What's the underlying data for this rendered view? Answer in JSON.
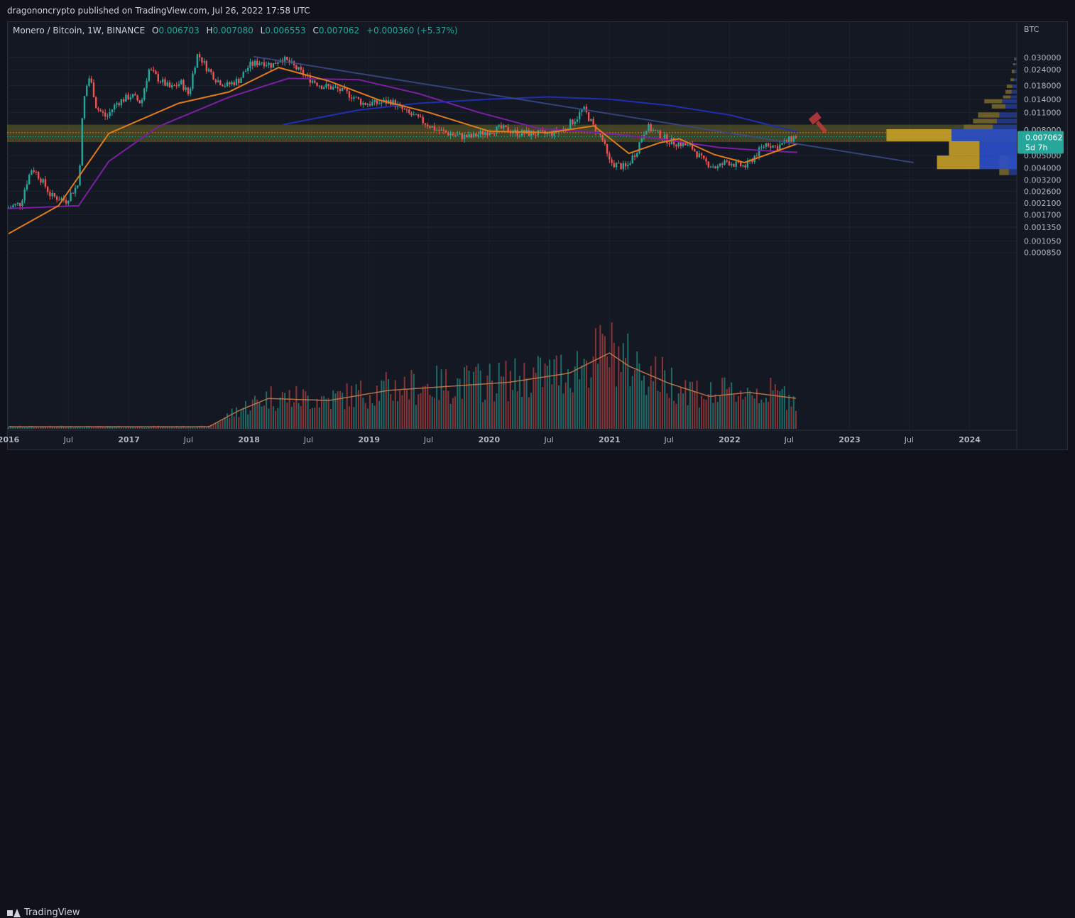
{
  "header": {
    "publisher_text": "dragononcrypto published on TradingView.com, Jul 26, 2022 17:58 UTC"
  },
  "legend": {
    "symbol": "Monero / Bitcoin, 1W, BINANCE",
    "o_label": "O",
    "o_value": "0.006703",
    "h_label": "H",
    "h_value": "0.007080",
    "l_label": "L",
    "l_value": "0.006553",
    "c_label": "C",
    "c_value": "0.007062",
    "change": "+0.000360 (+5.37%)"
  },
  "footer": {
    "brand": "TradingView"
  },
  "colors": {
    "background": "#141823",
    "up": "#26a69a",
    "down": "#ef5350",
    "ma_orange": "#e07b1a",
    "ma_purple": "#7b1fa2",
    "ma_blue": "#1e2fb0",
    "trendline": "#3a4a8a",
    "zone": "#8f8a2a",
    "price_badge": "#26a69a"
  },
  "chart_data": {
    "type": "candlestick",
    "pair": "XMR/BTC",
    "interval": "1W",
    "exchange": "BINANCE",
    "scale": "log",
    "y_unit_label": "BTC",
    "y_ticks": [
      "0.030000",
      "0.024000",
      "0.018000",
      "0.014000",
      "0.011000",
      "0.008000",
      "0.005000",
      "0.004000",
      "0.003200",
      "0.002600",
      "0.002100",
      "0.001700",
      "0.001350",
      "0.001050",
      "0.000850"
    ],
    "y_tick_values": [
      0.03,
      0.024,
      0.018,
      0.014,
      0.011,
      0.008,
      0.005,
      0.004,
      0.0032,
      0.0026,
      0.0021,
      0.0017,
      0.00135,
      0.00105,
      0.00085
    ],
    "x_ticks": [
      "2016",
      "Jul",
      "2017",
      "Jul",
      "2018",
      "Jul",
      "2019",
      "Jul",
      "2020",
      "Jul",
      "2021",
      "Jul",
      "2022",
      "Jul",
      "2023",
      "Jul",
      "2024"
    ],
    "x_tick_dates": [
      "2016-01-01",
      "2016-07-01",
      "2017-01-01",
      "2017-07-01",
      "2018-01-01",
      "2018-07-01",
      "2019-01-01",
      "2019-07-01",
      "2020-01-01",
      "2020-07-01",
      "2021-01-01",
      "2021-07-01",
      "2022-01-01",
      "2022-07-01",
      "2023-01-01",
      "2023-07-01",
      "2024-01-01"
    ],
    "x_bold_ticks": [
      "2016",
      "2017",
      "2018",
      "2019",
      "2020",
      "2021",
      "2022",
      "2023",
      "2024"
    ],
    "last_price": "0.007062",
    "countdown": "5d 7h",
    "price_path": [
      {
        "date": "2016-01-01",
        "price": 0.0019
      },
      {
        "date": "2016-02-15",
        "price": 0.0021
      },
      {
        "date": "2016-03-20",
        "price": 0.004
      },
      {
        "date": "2016-05-15",
        "price": 0.0024
      },
      {
        "date": "2016-07-01",
        "price": 0.0022
      },
      {
        "date": "2016-08-10",
        "price": 0.003
      },
      {
        "date": "2016-08-28",
        "price": 0.016
      },
      {
        "date": "2016-09-10",
        "price": 0.021
      },
      {
        "date": "2016-10-01",
        "price": 0.012
      },
      {
        "date": "2016-11-01",
        "price": 0.01
      },
      {
        "date": "2016-12-01",
        "price": 0.013
      },
      {
        "date": "2017-01-15",
        "price": 0.015
      },
      {
        "date": "2017-02-15",
        "price": 0.013
      },
      {
        "date": "2017-03-10",
        "price": 0.024
      },
      {
        "date": "2017-04-10",
        "price": 0.02
      },
      {
        "date": "2017-05-15",
        "price": 0.017
      },
      {
        "date": "2017-06-15",
        "price": 0.019
      },
      {
        "date": "2017-07-10",
        "price": 0.015
      },
      {
        "date": "2017-08-05",
        "price": 0.032
      },
      {
        "date": "2017-09-01",
        "price": 0.025
      },
      {
        "date": "2017-10-01",
        "price": 0.02
      },
      {
        "date": "2017-11-01",
        "price": 0.018
      },
      {
        "date": "2017-12-10",
        "price": 0.02
      },
      {
        "date": "2018-01-10",
        "price": 0.026
      },
      {
        "date": "2018-02-15",
        "price": 0.028
      },
      {
        "date": "2018-03-20",
        "price": 0.026
      },
      {
        "date": "2018-04-15",
        "price": 0.03
      },
      {
        "date": "2018-05-20",
        "price": 0.026
      },
      {
        "date": "2018-07-01",
        "price": 0.021
      },
      {
        "date": "2018-08-15",
        "price": 0.018
      },
      {
        "date": "2018-10-01",
        "price": 0.017
      },
      {
        "date": "2018-11-15",
        "price": 0.015
      },
      {
        "date": "2018-12-20",
        "price": 0.013
      },
      {
        "date": "2019-02-01",
        "price": 0.013
      },
      {
        "date": "2019-03-15",
        "price": 0.0135
      },
      {
        "date": "2019-05-01",
        "price": 0.011
      },
      {
        "date": "2019-06-15",
        "price": 0.0095
      },
      {
        "date": "2019-08-01",
        "price": 0.008
      },
      {
        "date": "2019-10-01",
        "price": 0.0072
      },
      {
        "date": "2019-11-15",
        "price": 0.007
      },
      {
        "date": "2020-01-01",
        "price": 0.0078
      },
      {
        "date": "2020-02-15",
        "price": 0.0082
      },
      {
        "date": "2020-04-01",
        "price": 0.0076
      },
      {
        "date": "2020-05-15",
        "price": 0.0075
      },
      {
        "date": "2020-07-01",
        "price": 0.0074
      },
      {
        "date": "2020-08-20",
        "price": 0.008
      },
      {
        "date": "2020-10-01",
        "price": 0.01
      },
      {
        "date": "2020-10-20",
        "price": 0.0118
      },
      {
        "date": "2020-11-20",
        "price": 0.0085
      },
      {
        "date": "2020-12-15",
        "price": 0.007
      },
      {
        "date": "2021-01-05",
        "price": 0.0045
      },
      {
        "date": "2021-02-01",
        "price": 0.0042
      },
      {
        "date": "2021-03-01",
        "price": 0.004
      },
      {
        "date": "2021-04-01",
        "price": 0.0055
      },
      {
        "date": "2021-05-01",
        "price": 0.0085
      },
      {
        "date": "2021-06-01",
        "price": 0.0075
      },
      {
        "date": "2021-07-10",
        "price": 0.0065
      },
      {
        "date": "2021-08-15",
        "price": 0.0062
      },
      {
        "date": "2021-09-15",
        "price": 0.0058
      },
      {
        "date": "2021-10-20",
        "price": 0.0045
      },
      {
        "date": "2021-12-01",
        "price": 0.004
      },
      {
        "date": "2022-01-01",
        "price": 0.0045
      },
      {
        "date": "2022-02-01",
        "price": 0.0042
      },
      {
        "date": "2022-03-01",
        "price": 0.0041
      },
      {
        "date": "2022-04-01",
        "price": 0.0052
      },
      {
        "date": "2022-05-01",
        "price": 0.0063
      },
      {
        "date": "2022-06-01",
        "price": 0.0058
      },
      {
        "date": "2022-07-26",
        "price": 0.007062
      }
    ],
    "volume_path": [
      {
        "date": "2016-01-01",
        "v": 0.02
      },
      {
        "date": "2017-09-01",
        "v": 0.02
      },
      {
        "date": "2017-12-01",
        "v": 0.18
      },
      {
        "date": "2018-03-01",
        "v": 0.3
      },
      {
        "date": "2018-09-01",
        "v": 0.28
      },
      {
        "date": "2019-03-01",
        "v": 0.38
      },
      {
        "date": "2019-09-01",
        "v": 0.42
      },
      {
        "date": "2020-03-01",
        "v": 0.46
      },
      {
        "date": "2020-09-01",
        "v": 0.55
      },
      {
        "date": "2021-01-01",
        "v": 0.75
      },
      {
        "date": "2021-03-01",
        "v": 0.62
      },
      {
        "date": "2021-07-01",
        "v": 0.45
      },
      {
        "date": "2021-11-01",
        "v": 0.32
      },
      {
        "date": "2022-03-01",
        "v": 0.36
      },
      {
        "date": "2022-07-26",
        "v": 0.3
      }
    ],
    "ma_orange": [
      {
        "date": "2016-01-01",
        "price": 0.0012
      },
      {
        "date": "2016-06-01",
        "price": 0.002
      },
      {
        "date": "2016-11-01",
        "price": 0.0075
      },
      {
        "date": "2017-06-01",
        "price": 0.013
      },
      {
        "date": "2017-11-01",
        "price": 0.016
      },
      {
        "date": "2018-04-01",
        "price": 0.025
      },
      {
        "date": "2018-09-01",
        "price": 0.0195
      },
      {
        "date": "2019-02-01",
        "price": 0.0138
      },
      {
        "date": "2019-07-01",
        "price": 0.011
      },
      {
        "date": "2020-01-01",
        "price": 0.0078
      },
      {
        "date": "2020-07-01",
        "price": 0.0076
      },
      {
        "date": "2020-11-15",
        "price": 0.0086
      },
      {
        "date": "2021-03-01",
        "price": 0.0052
      },
      {
        "date": "2021-06-01",
        "price": 0.0063
      },
      {
        "date": "2021-08-01",
        "price": 0.0068
      },
      {
        "date": "2021-11-15",
        "price": 0.0051
      },
      {
        "date": "2022-02-15",
        "price": 0.0044
      },
      {
        "date": "2022-07-26",
        "price": 0.0062
      }
    ],
    "ma_purple": [
      {
        "date": "2016-01-01",
        "price": 0.0019
      },
      {
        "date": "2016-08-01",
        "price": 0.002
      },
      {
        "date": "2016-11-01",
        "price": 0.0045
      },
      {
        "date": "2017-04-01",
        "price": 0.0085
      },
      {
        "date": "2017-11-01",
        "price": 0.0145
      },
      {
        "date": "2018-05-01",
        "price": 0.0205
      },
      {
        "date": "2018-12-01",
        "price": 0.02
      },
      {
        "date": "2019-06-01",
        "price": 0.0155
      },
      {
        "date": "2019-12-01",
        "price": 0.011
      },
      {
        "date": "2020-06-01",
        "price": 0.0082
      },
      {
        "date": "2020-12-01",
        "price": 0.0076
      },
      {
        "date": "2021-06-01",
        "price": 0.0068
      },
      {
        "date": "2021-12-01",
        "price": 0.0058
      },
      {
        "date": "2022-04-01",
        "price": 0.0055
      },
      {
        "date": "2022-07-26",
        "price": 0.0053
      }
    ],
    "ma_blue": [
      {
        "date": "2018-04-15",
        "price": 0.0088
      },
      {
        "date": "2018-12-01",
        "price": 0.0115
      },
      {
        "date": "2019-06-01",
        "price": 0.013
      },
      {
        "date": "2020-01-01",
        "price": 0.014
      },
      {
        "date": "2020-07-01",
        "price": 0.0146
      },
      {
        "date": "2021-01-01",
        "price": 0.014
      },
      {
        "date": "2021-07-01",
        "price": 0.0125
      },
      {
        "date": "2022-01-01",
        "price": 0.0105
      },
      {
        "date": "2022-07-26",
        "price": 0.0077
      }
    ],
    "trendline": [
      {
        "date": "2018-01-15",
        "price": 0.0305
      },
      {
        "date": "2023-07-15",
        "price": 0.0044
      }
    ],
    "horizontal_zone": {
      "low": 0.0064,
      "high": 0.0088,
      "mid": 0.0076
    },
    "volume_profile_right": [
      {
        "low": 0.0284,
        "high": 0.03,
        "size": 0.04
      },
      {
        "low": 0.026,
        "high": 0.027,
        "size": 0.06
      },
      {
        "low": 0.0225,
        "high": 0.024,
        "size": 0.08
      },
      {
        "low": 0.0195,
        "high": 0.0205,
        "size": 0.1
      },
      {
        "low": 0.0172,
        "high": 0.0183,
        "size": 0.16
      },
      {
        "low": 0.0155,
        "high": 0.0166,
        "size": 0.18
      },
      {
        "low": 0.0142,
        "high": 0.015,
        "size": 0.22
      },
      {
        "low": 0.013,
        "high": 0.014,
        "size": 0.52
      },
      {
        "low": 0.0118,
        "high": 0.0128,
        "size": 0.4
      },
      {
        "low": 0.01,
        "high": 0.011,
        "size": 0.62
      },
      {
        "low": 0.009,
        "high": 0.0098,
        "size": 0.7
      },
      {
        "low": 0.008,
        "high": 0.0088,
        "size": 0.85
      },
      {
        "low": 0.0035,
        "high": 0.005,
        "size": 0.28
      }
    ],
    "fixed_range_profile": [
      {
        "low": 0.0065,
        "high": 0.0081,
        "total": 0.98,
        "blue": 0.49
      },
      {
        "low": 0.005,
        "high": 0.0065,
        "total": 0.51,
        "blue": 0.28
      },
      {
        "low": 0.0039,
        "high": 0.005,
        "total": 0.6,
        "blue": 0.28
      }
    ]
  }
}
